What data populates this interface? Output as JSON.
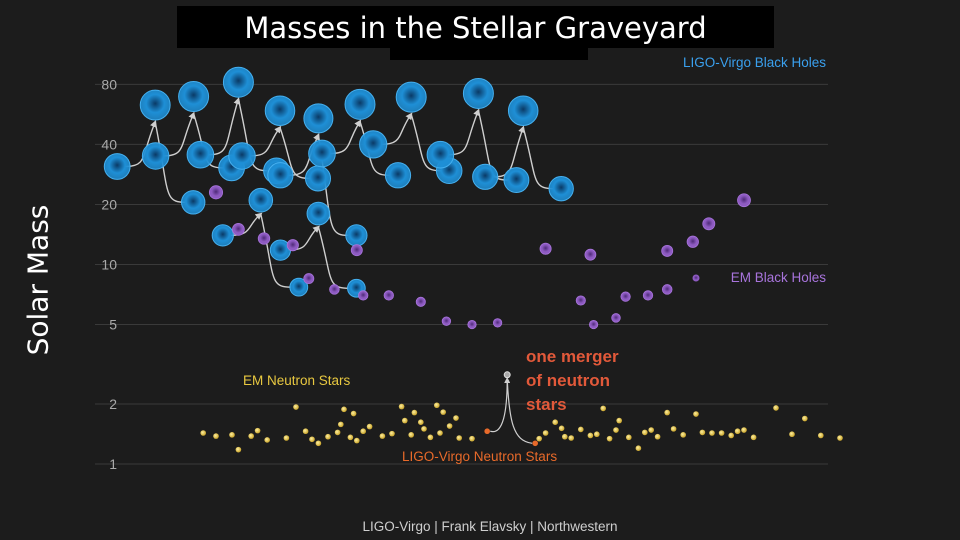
{
  "title": "Masses in the Stellar Graveyard",
  "ylabel": "Solar Mass",
  "credit": "LIGO-Virgo | Frank Elavsky | Northwestern",
  "annotation": [
    "one merger",
    "of neutron",
    "stars"
  ],
  "colors": {
    "background": "#1c1c1c",
    "ligo_bh": "#1e8fd6",
    "em_bh": "#8e5bc2",
    "em_ns": "#e8c840",
    "ligo_ns": "#e86a2a",
    "annotation": "#e2593a"
  },
  "chart_data": {
    "type": "scatter",
    "title": "Masses in the Stellar Graveyard",
    "ylabel": "Solar Mass",
    "yscale": "log",
    "ylim": [
      0.9,
      100
    ],
    "yticks": [
      1,
      2,
      5,
      10,
      20,
      40,
      80
    ],
    "grid": true,
    "legend": "inline labels",
    "series": [
      {
        "name": "LIGO-Virgo Black Holes",
        "kind": "merger",
        "mergers": [
          {
            "x": 0.11,
            "m1": 31.0,
            "m2": 20.5,
            "final": 63.0
          },
          {
            "x": 0.23,
            "m1": 35.0,
            "m2": 30.5,
            "final": 69.5
          },
          {
            "x": 0.37,
            "m1": 35.5,
            "m2": 29.5,
            "final": 82.0
          },
          {
            "x": 0.5,
            "m1": 35.0,
            "m2": 27.0,
            "final": 59.0
          },
          {
            "x": 0.62,
            "m1": 28.0,
            "m2": 14.0,
            "final": 54.0
          },
          {
            "x": 0.75,
            "m1": 36.0,
            "m2": 28.0,
            "final": 63.5
          },
          {
            "x": 0.91,
            "m1": 40.0,
            "m2": 29.5,
            "final": 69.0
          },
          {
            "x": 1.12,
            "m1": 35.5,
            "m2": 26.5,
            "final": 72.0
          },
          {
            "x": 1.26,
            "m1": 27.5,
            "m2": 24.0,
            "final": 59.0
          },
          {
            "x": 0.44,
            "m1": 14.0,
            "m2": 7.7,
            "final": 21.0
          },
          {
            "x": 0.62,
            "m1": 11.8,
            "m2": 7.6,
            "final": 18.0
          }
        ]
      },
      {
        "name": "EM Black Holes",
        "points": [
          [
            0.3,
            23.0
          ],
          [
            0.37,
            15.0
          ],
          [
            0.45,
            13.5
          ],
          [
            0.54,
            12.5
          ],
          [
            0.59,
            8.5
          ],
          [
            0.67,
            7.5
          ],
          [
            0.74,
            11.8
          ],
          [
            0.76,
            7.0
          ],
          [
            0.84,
            7.0
          ],
          [
            0.94,
            6.5
          ],
          [
            1.02,
            5.2
          ],
          [
            1.1,
            5.0
          ],
          [
            1.18,
            5.1
          ],
          [
            1.33,
            12.0
          ],
          [
            1.44,
            6.6
          ],
          [
            1.48,
            5.0
          ],
          [
            1.47,
            11.2
          ],
          [
            1.55,
            5.4
          ],
          [
            1.58,
            6.9
          ],
          [
            1.65,
            7.0
          ],
          [
            1.71,
            11.7
          ],
          [
            1.79,
            13.0
          ],
          [
            1.84,
            16.0
          ],
          [
            1.95,
            21.0
          ],
          [
            1.71,
            7.5
          ]
        ]
      },
      {
        "name": "EM Neutron Stars",
        "points": [
          [
            0.26,
            1.43
          ],
          [
            0.3,
            1.38
          ],
          [
            0.35,
            1.4
          ],
          [
            0.37,
            1.18
          ],
          [
            0.41,
            1.38
          ],
          [
            0.43,
            1.47
          ],
          [
            0.46,
            1.32
          ],
          [
            0.52,
            1.35
          ],
          [
            0.55,
            1.93
          ],
          [
            0.58,
            1.46
          ],
          [
            0.6,
            1.33
          ],
          [
            0.62,
            1.27
          ],
          [
            0.65,
            1.37
          ],
          [
            0.68,
            1.44
          ],
          [
            0.69,
            1.58
          ],
          [
            0.7,
            1.88
          ],
          [
            0.72,
            1.36
          ],
          [
            0.73,
            1.79
          ],
          [
            0.74,
            1.31
          ],
          [
            0.76,
            1.46
          ],
          [
            0.78,
            1.54
          ],
          [
            0.82,
            1.38
          ],
          [
            0.85,
            1.42
          ],
          [
            0.88,
            1.94
          ],
          [
            0.89,
            1.65
          ],
          [
            0.91,
            1.4
          ],
          [
            0.92,
            1.81
          ],
          [
            0.94,
            1.62
          ],
          [
            0.95,
            1.5
          ],
          [
            0.97,
            1.36
          ],
          [
            0.99,
            1.97
          ],
          [
            1.0,
            1.43
          ],
          [
            1.01,
            1.82
          ],
          [
            1.03,
            1.55
          ],
          [
            1.05,
            1.7
          ],
          [
            1.06,
            1.35
          ],
          [
            1.1,
            1.34
          ],
          [
            1.31,
            1.34
          ],
          [
            1.33,
            1.43
          ],
          [
            1.36,
            1.62
          ],
          [
            1.38,
            1.51
          ],
          [
            1.39,
            1.37
          ],
          [
            1.41,
            1.35
          ],
          [
            1.44,
            1.49
          ],
          [
            1.47,
            1.39
          ],
          [
            1.49,
            1.41
          ],
          [
            1.51,
            1.9
          ],
          [
            1.53,
            1.34
          ],
          [
            1.55,
            1.48
          ],
          [
            1.56,
            1.65
          ],
          [
            1.59,
            1.36
          ],
          [
            1.62,
            1.2
          ],
          [
            1.64,
            1.44
          ],
          [
            1.66,
            1.48
          ],
          [
            1.68,
            1.37
          ],
          [
            1.71,
            1.81
          ],
          [
            1.73,
            1.5
          ],
          [
            1.76,
            1.4
          ],
          [
            1.8,
            1.78
          ],
          [
            1.82,
            1.44
          ],
          [
            1.85,
            1.43
          ],
          [
            1.88,
            1.43
          ],
          [
            1.91,
            1.39
          ],
          [
            1.93,
            1.46
          ],
          [
            1.95,
            1.48
          ],
          [
            1.98,
            1.36
          ],
          [
            2.05,
            1.91
          ],
          [
            2.1,
            1.41
          ],
          [
            2.14,
            1.69
          ],
          [
            2.19,
            1.39
          ],
          [
            2.25,
            1.35
          ]
        ]
      },
      {
        "name": "LIGO-Virgo Neutron Stars",
        "kind": "merger",
        "mergers": [
          {
            "x": 1.21,
            "m1": 1.46,
            "m2": 1.27,
            "final": 2.8
          }
        ]
      }
    ]
  }
}
